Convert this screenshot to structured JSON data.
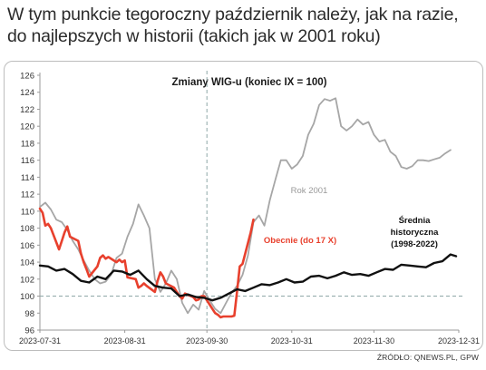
{
  "headline": {
    "line1": "W tym punkcie tegoroczny październik należy, jak na razie,",
    "line2": "do najlepszych w historii (takich jak w 2001 roku)"
  },
  "footer": {
    "source": "ŹRÓDŁO: QNEWS.PL, GPW"
  },
  "chart_data": {
    "type": "line",
    "title": "Zmiany WIG-u (koniec IX = 100)",
    "ylim": [
      96,
      126
    ],
    "yticks": [
      96,
      98,
      100,
      102,
      104,
      106,
      108,
      110,
      112,
      114,
      116,
      118,
      120,
      122,
      124,
      126
    ],
    "x_ticks": [
      "2023-07-31",
      "2023-08-31",
      "2023-09-30",
      "2023-10-31",
      "2023-11-30",
      "2023-12-31"
    ],
    "x_range": [
      "2023-07-31",
      "2023-12-31"
    ],
    "reference_line": {
      "y": 100,
      "style": "dashed"
    },
    "vertical_marker": {
      "x": "2023-09-30",
      "style": "dashed"
    },
    "grid": false,
    "annotations": [
      {
        "text": "Rok 2001",
        "series": "Rok 2001",
        "color": "#9a9a9a"
      },
      {
        "text": "Obecnie (do 17 X)",
        "series": "Obecnie (do 17 X)",
        "color": "#e8402d"
      },
      {
        "text": "Średnia",
        "series": "Średnia historyczna (1998-2022)",
        "color": "#111111"
      },
      {
        "text": "historyczna",
        "series": "Średnia historyczna (1998-2022)",
        "color": "#111111"
      },
      {
        "text": "(1998-2022)",
        "series": "Średnia historyczna (1998-2022)",
        "color": "#111111"
      }
    ],
    "series": [
      {
        "name": "Rok 2001",
        "color": "#a6a6a6",
        "points": [
          [
            "2023-07-31",
            110.5
          ],
          [
            "2023-08-02",
            111.0
          ],
          [
            "2023-08-04",
            110.2
          ],
          [
            "2023-08-06",
            109.0
          ],
          [
            "2023-08-08",
            108.7
          ],
          [
            "2023-08-10",
            107.8
          ],
          [
            "2023-08-12",
            106.5
          ],
          [
            "2023-08-14",
            105.5
          ],
          [
            "2023-08-16",
            104.2
          ],
          [
            "2023-08-18",
            103.0
          ],
          [
            "2023-08-20",
            102.0
          ],
          [
            "2023-08-22",
            101.5
          ],
          [
            "2023-08-24",
            101.7
          ],
          [
            "2023-08-26",
            102.5
          ],
          [
            "2023-08-28",
            104.5
          ],
          [
            "2023-08-30",
            105.0
          ],
          [
            "2023-09-01",
            107.0
          ],
          [
            "2023-09-03",
            108.5
          ],
          [
            "2023-09-05",
            110.8
          ],
          [
            "2023-09-07",
            109.5
          ],
          [
            "2023-09-09",
            108.0
          ],
          [
            "2023-09-11",
            102.0
          ],
          [
            "2023-09-13",
            100.5
          ],
          [
            "2023-09-15",
            101.5
          ],
          [
            "2023-09-17",
            103.0
          ],
          [
            "2023-09-19",
            102.0
          ],
          [
            "2023-09-21",
            99.2
          ],
          [
            "2023-09-23",
            98.0
          ],
          [
            "2023-09-25",
            99.0
          ],
          [
            "2023-09-27",
            98.4
          ],
          [
            "2023-09-29",
            100.6
          ],
          [
            "2023-10-01",
            99.5
          ],
          [
            "2023-10-03",
            98.5
          ],
          [
            "2023-10-05",
            98.0
          ],
          [
            "2023-10-07",
            99.2
          ],
          [
            "2023-10-09",
            100.4
          ],
          [
            "2023-10-11",
            101.2
          ],
          [
            "2023-10-13",
            102.5
          ],
          [
            "2023-10-15",
            104.8
          ],
          [
            "2023-10-17",
            108.7
          ],
          [
            "2023-10-19",
            109.5
          ],
          [
            "2023-10-21",
            108.3
          ],
          [
            "2023-10-23",
            111.3
          ],
          [
            "2023-10-25",
            113.7
          ],
          [
            "2023-10-27",
            116.0
          ],
          [
            "2023-10-29",
            116.0
          ],
          [
            "2023-10-31",
            115.0
          ],
          [
            "2023-11-02",
            115.5
          ],
          [
            "2023-11-04",
            116.5
          ],
          [
            "2023-11-06",
            119.0
          ],
          [
            "2023-11-08",
            120.3
          ],
          [
            "2023-11-10",
            122.5
          ],
          [
            "2023-11-12",
            123.2
          ],
          [
            "2023-11-14",
            123.0
          ],
          [
            "2023-11-16",
            123.3
          ],
          [
            "2023-11-18",
            120.0
          ],
          [
            "2023-11-20",
            119.5
          ],
          [
            "2023-11-22",
            120.0
          ],
          [
            "2023-11-24",
            120.8
          ],
          [
            "2023-11-26",
            120.2
          ],
          [
            "2023-11-28",
            120.5
          ],
          [
            "2023-11-30",
            119.0
          ],
          [
            "2023-12-02",
            118.2
          ],
          [
            "2023-12-04",
            118.4
          ],
          [
            "2023-12-06",
            117.0
          ],
          [
            "2023-12-08",
            116.5
          ],
          [
            "2023-12-10",
            115.2
          ],
          [
            "2023-12-12",
            115.0
          ],
          [
            "2023-12-14",
            115.3
          ],
          [
            "2023-12-16",
            116.0
          ],
          [
            "2023-12-18",
            116.0
          ],
          [
            "2023-12-20",
            115.9
          ],
          [
            "2023-12-22",
            116.1
          ],
          [
            "2023-12-24",
            116.3
          ],
          [
            "2023-12-26",
            116.8
          ],
          [
            "2023-12-28",
            117.2
          ]
        ]
      },
      {
        "name": "Obecnie (do 17 X)",
        "color": "#e8402d",
        "points": [
          [
            "2023-07-31",
            110.3
          ],
          [
            "2023-08-01",
            109.8
          ],
          [
            "2023-08-02",
            108.3
          ],
          [
            "2023-08-03",
            108.5
          ],
          [
            "2023-08-04",
            108.0
          ],
          [
            "2023-08-07",
            105.5
          ],
          [
            "2023-08-08",
            106.5
          ],
          [
            "2023-08-09",
            107.5
          ],
          [
            "2023-08-10",
            108.2
          ],
          [
            "2023-08-11",
            107.0
          ],
          [
            "2023-08-14",
            106.5
          ],
          [
            "2023-08-15",
            105.0
          ],
          [
            "2023-08-16",
            104.0
          ],
          [
            "2023-08-17",
            103.2
          ],
          [
            "2023-08-18",
            102.3
          ],
          [
            "2023-08-21",
            103.5
          ],
          [
            "2023-08-22",
            104.5
          ],
          [
            "2023-08-23",
            104.8
          ],
          [
            "2023-08-24",
            104.4
          ],
          [
            "2023-08-25",
            104.6
          ],
          [
            "2023-08-28",
            104.0
          ],
          [
            "2023-08-29",
            104.3
          ],
          [
            "2023-08-30",
            104.0
          ],
          [
            "2023-08-31",
            104.2
          ],
          [
            "2023-09-01",
            102.2
          ],
          [
            "2023-09-04",
            102.0
          ],
          [
            "2023-09-05",
            101.0
          ],
          [
            "2023-09-06",
            101.2
          ],
          [
            "2023-09-07",
            101.5
          ],
          [
            "2023-09-08",
            101.2
          ],
          [
            "2023-09-11",
            100.5
          ],
          [
            "2023-09-12",
            101.8
          ],
          [
            "2023-09-13",
            102.8
          ],
          [
            "2023-09-14",
            102.3
          ],
          [
            "2023-09-15",
            101.5
          ],
          [
            "2023-09-18",
            101.0
          ],
          [
            "2023-09-19",
            100.5
          ],
          [
            "2023-09-20",
            100.0
          ],
          [
            "2023-09-21",
            99.7
          ],
          [
            "2023-09-22",
            100.3
          ],
          [
            "2023-09-25",
            99.9
          ],
          [
            "2023-09-26",
            99.5
          ],
          [
            "2023-09-27",
            99.6
          ],
          [
            "2023-09-28",
            100.0
          ],
          [
            "2023-09-29",
            100.0
          ],
          [
            "2023-10-02",
            98.5
          ],
          [
            "2023-10-03",
            98.0
          ],
          [
            "2023-10-04",
            97.8
          ],
          [
            "2023-10-05",
            97.5
          ],
          [
            "2023-10-06",
            97.6
          ],
          [
            "2023-10-09",
            97.6
          ],
          [
            "2023-10-10",
            97.7
          ],
          [
            "2023-10-11",
            100.5
          ],
          [
            "2023-10-12",
            103.5
          ],
          [
            "2023-10-13",
            103.8
          ],
          [
            "2023-10-16",
            107.5
          ],
          [
            "2023-10-17",
            109.0
          ]
        ]
      },
      {
        "name": "Średnia historyczna (1998-2022)",
        "color": "#111111",
        "points": [
          [
            "2023-07-31",
            103.6
          ],
          [
            "2023-08-03",
            103.5
          ],
          [
            "2023-08-06",
            103.0
          ],
          [
            "2023-08-09",
            103.2
          ],
          [
            "2023-08-12",
            102.6
          ],
          [
            "2023-08-15",
            101.8
          ],
          [
            "2023-08-18",
            101.6
          ],
          [
            "2023-08-21",
            102.3
          ],
          [
            "2023-08-24",
            102.0
          ],
          [
            "2023-08-27",
            103.0
          ],
          [
            "2023-08-30",
            102.9
          ],
          [
            "2023-09-02",
            102.5
          ],
          [
            "2023-09-05",
            103.0
          ],
          [
            "2023-09-08",
            102.0
          ],
          [
            "2023-09-11",
            101.2
          ],
          [
            "2023-09-14",
            101.0
          ],
          [
            "2023-09-17",
            100.9
          ],
          [
            "2023-09-20",
            100.0
          ],
          [
            "2023-09-23",
            100.2
          ],
          [
            "2023-09-26",
            99.9
          ],
          [
            "2023-09-29",
            99.8
          ],
          [
            "2023-10-02",
            99.5
          ],
          [
            "2023-10-05",
            99.8
          ],
          [
            "2023-10-08",
            100.3
          ],
          [
            "2023-10-11",
            100.8
          ],
          [
            "2023-10-14",
            100.6
          ],
          [
            "2023-10-17",
            101.0
          ],
          [
            "2023-10-20",
            101.4
          ],
          [
            "2023-10-23",
            101.3
          ],
          [
            "2023-10-26",
            101.6
          ],
          [
            "2023-10-29",
            102.0
          ],
          [
            "2023-11-01",
            101.6
          ],
          [
            "2023-11-04",
            101.7
          ],
          [
            "2023-11-07",
            102.3
          ],
          [
            "2023-11-10",
            102.4
          ],
          [
            "2023-11-13",
            102.1
          ],
          [
            "2023-11-16",
            102.4
          ],
          [
            "2023-11-19",
            102.8
          ],
          [
            "2023-11-22",
            102.5
          ],
          [
            "2023-11-25",
            102.6
          ],
          [
            "2023-11-28",
            102.4
          ],
          [
            "2023-12-01",
            102.8
          ],
          [
            "2023-12-04",
            103.2
          ],
          [
            "2023-12-07",
            103.1
          ],
          [
            "2023-12-10",
            103.7
          ],
          [
            "2023-12-13",
            103.6
          ],
          [
            "2023-12-16",
            103.5
          ],
          [
            "2023-12-19",
            103.4
          ],
          [
            "2023-12-22",
            103.9
          ],
          [
            "2023-12-25",
            104.1
          ],
          [
            "2023-12-28",
            104.9
          ],
          [
            "2023-12-30",
            104.7
          ]
        ]
      }
    ]
  }
}
